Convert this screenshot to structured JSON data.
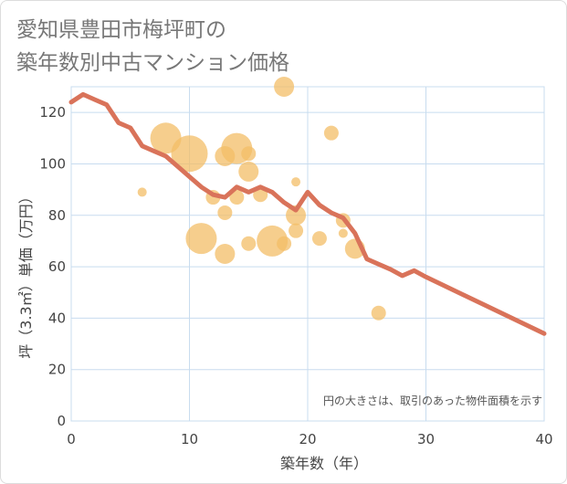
{
  "title": {
    "line1": "愛知県豊田市梅坪町の",
    "line2": "築年数別中古マンション価格"
  },
  "chart_data": {
    "type": "scatter",
    "xlabel": "築年数（年）",
    "ylabel": "坪（3.3㎡）単価（万円）",
    "xlim": [
      0,
      40
    ],
    "ylim": [
      0,
      130
    ],
    "xticks": [
      0,
      10,
      20,
      30,
      40
    ],
    "yticks": [
      0,
      20,
      40,
      60,
      80,
      100,
      120
    ],
    "grid": true,
    "annotation": "円の大きさは、取引のあった物件面積を示す",
    "colors": {
      "bubble": "#f3bd67",
      "line": "#d9735a",
      "grid": "#c8dcef"
    },
    "bubbles": [
      {
        "x": 6,
        "y": 89,
        "size": 1
      },
      {
        "x": 8,
        "y": 110,
        "size": 5
      },
      {
        "x": 10,
        "y": 104,
        "size": 6
      },
      {
        "x": 11,
        "y": 71,
        "size": 5
      },
      {
        "x": 12,
        "y": 87,
        "size": 2
      },
      {
        "x": 13,
        "y": 103,
        "size": 3
      },
      {
        "x": 13,
        "y": 81,
        "size": 2
      },
      {
        "x": 13,
        "y": 65,
        "size": 3
      },
      {
        "x": 14,
        "y": 106,
        "size": 5
      },
      {
        "x": 14,
        "y": 87,
        "size": 2
      },
      {
        "x": 15,
        "y": 104,
        "size": 2
      },
      {
        "x": 15,
        "y": 97,
        "size": 3
      },
      {
        "x": 15,
        "y": 69,
        "size": 2
      },
      {
        "x": 16,
        "y": 88,
        "size": 2
      },
      {
        "x": 17,
        "y": 70,
        "size": 5
      },
      {
        "x": 18,
        "y": 130,
        "size": 3
      },
      {
        "x": 18,
        "y": 69,
        "size": 2
      },
      {
        "x": 19,
        "y": 93,
        "size": 1
      },
      {
        "x": 19,
        "y": 80,
        "size": 3
      },
      {
        "x": 19,
        "y": 74,
        "size": 2
      },
      {
        "x": 21,
        "y": 71,
        "size": 2
      },
      {
        "x": 22,
        "y": 112,
        "size": 2
      },
      {
        "x": 23,
        "y": 78,
        "size": 2
      },
      {
        "x": 23,
        "y": 73,
        "size": 1
      },
      {
        "x": 24,
        "y": 67,
        "size": 3
      },
      {
        "x": 26,
        "y": 42,
        "size": 2
      }
    ],
    "series": [
      {
        "x": [
          0,
          1,
          2,
          3,
          4,
          5,
          6,
          7,
          8,
          9,
          10,
          11,
          12,
          13,
          14,
          15,
          16,
          17,
          18,
          19,
          20,
          21,
          22,
          23,
          24,
          25,
          26,
          27,
          28,
          29,
          30,
          35,
          40
        ],
        "values": [
          124,
          127,
          125,
          123,
          116,
          114,
          107,
          105,
          103,
          99,
          95,
          91,
          88,
          87,
          91,
          89,
          91,
          89,
          85,
          82,
          89,
          84,
          81,
          79,
          73,
          63,
          61,
          59,
          56.5,
          58.5,
          56,
          45,
          34
        ]
      }
    ]
  }
}
